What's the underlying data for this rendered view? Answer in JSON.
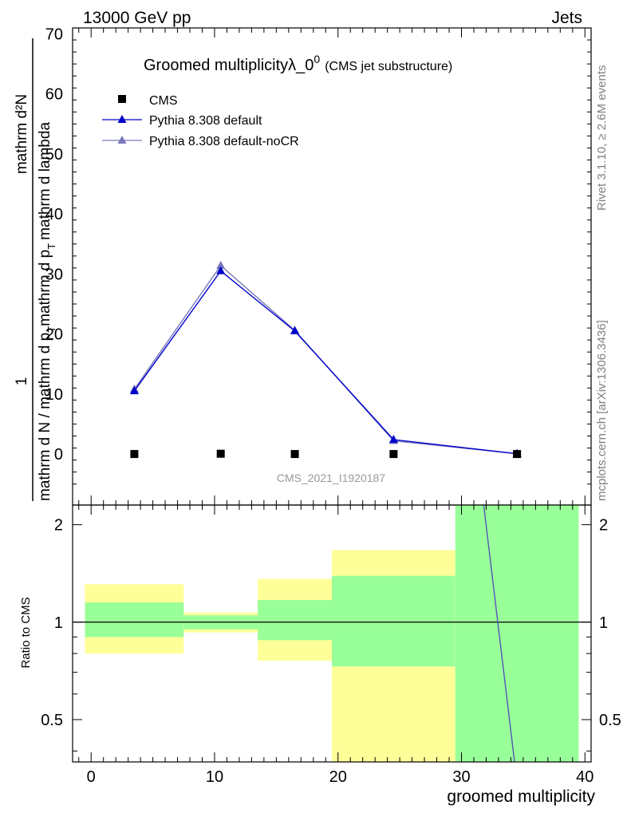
{
  "header": {
    "left": "13000 GeV pp",
    "right": "Jets"
  },
  "side_labels": {
    "rivet": "Rivet 3.1.10, ≥ 2.6M events",
    "mcplots": "mcplots.cern.ch [arXiv:1306.3436]"
  },
  "chart_data": [
    {
      "type": "line",
      "title": "Groomed multiplicityλ_0",
      "title_superscript": "0",
      "subtitle": "(CMS jet substructure)",
      "watermark": "CMS_2021_I1920187",
      "ylabel_numerator": "1",
      "ylabel_numerator_right": "mathrm d²N",
      "ylabel_denominator": "mathrm d N / mathrm d p",
      "ylabel_denominator_mid": "mathrm d p",
      "ylabel_denominator_right": "mathrm d lambda",
      "ylabel_sub_T": "T",
      "xlim": [
        -1.5,
        40.5
      ],
      "ylim": [
        -8.5,
        71
      ],
      "yticks": [
        0,
        10,
        20,
        30,
        40,
        50,
        60,
        70
      ],
      "legend_position": "top-left",
      "series": [
        {
          "name": "CMS",
          "marker": "square",
          "color": "#000000",
          "x": [
            3.5,
            10.5,
            16.5,
            24.5,
            34.5
          ],
          "y": [
            0.0,
            0.05,
            0.0,
            0.0,
            0.0
          ]
        },
        {
          "name": "Pythia 8.308 default",
          "marker": "triangle",
          "color": "#0000cc",
          "x": [
            3.5,
            10.5,
            16.5,
            24.5,
            34.5
          ],
          "y": [
            10.5,
            30.5,
            20.5,
            2.4,
            0.05
          ]
        },
        {
          "name": "Pythia 8.308 default-noCR",
          "marker": "triangle",
          "color": "#7777bb",
          "x": [
            3.5,
            10.5,
            16.5,
            24.5,
            34.5
          ],
          "y": [
            10.8,
            31.4,
            20.6,
            2.2,
            0.05
          ]
        }
      ]
    },
    {
      "type": "area",
      "ylabel": "Ratio to CMS",
      "xlabel": "groomed multiplicity",
      "xlim": [
        -1.5,
        40.5
      ],
      "ylim": [
        0.37,
        2.3
      ],
      "log_y": true,
      "xticks": [
        0,
        10,
        20,
        30,
        40
      ],
      "yticks": [
        0.5,
        1,
        2
      ],
      "ytick_labels": [
        "0.5",
        "1",
        "2"
      ],
      "bins": [
        {
          "x_low": -0.5,
          "x_high": 7.5,
          "inner": [
            0.9,
            1.15
          ],
          "outer": [
            0.8,
            1.31
          ]
        },
        {
          "x_low": 7.5,
          "x_high": 13.5,
          "inner": [
            0.95,
            1.05
          ],
          "outer": [
            0.93,
            1.07
          ]
        },
        {
          "x_low": 13.5,
          "x_high": 19.5,
          "inner": [
            0.88,
            1.17
          ],
          "outer": [
            0.76,
            1.36
          ]
        },
        {
          "x_low": 19.5,
          "x_high": 29.5,
          "inner": [
            0.73,
            1.39
          ],
          "outer": [
            0.37,
            1.67
          ]
        },
        {
          "x_low": 29.5,
          "x_high": 39.5,
          "inner": [
            0.37,
            2.3
          ],
          "outer": [
            0.37,
            2.3
          ]
        }
      ],
      "reference_line": 1,
      "ratio_curve": {
        "color": "#5555bb",
        "x": [
          31.8,
          34.3
        ],
        "y": [
          2.3,
          0.37
        ]
      }
    }
  ]
}
